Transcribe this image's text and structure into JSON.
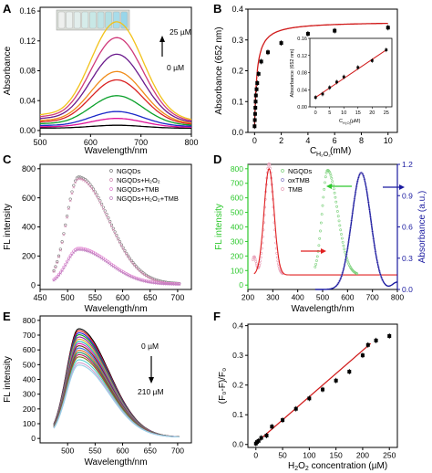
{
  "chart_data": [
    {
      "panel": "A",
      "type": "line",
      "xlabel": "Wavelength/nm",
      "ylabel": "Absorbance",
      "xlim": [
        500,
        800
      ],
      "ylim": [
        -0.005,
        0.165
      ],
      "x_ticks": [
        "500",
        "600",
        "700",
        "800"
      ],
      "y_ticks": [
        "0.00",
        "0.04",
        "0.08",
        "0.12",
        "0.16"
      ],
      "annotations": [
        "25 µM",
        "0 µM"
      ],
      "series": [
        {
          "color": "#000000",
          "peak": 0.004
        },
        {
          "color": "#e0149a",
          "peak": 0.012
        },
        {
          "color": "#1a28c8",
          "peak": 0.02
        },
        {
          "color": "#0aa02a",
          "peak": 0.04
        },
        {
          "color": "#d92020",
          "peak": 0.06
        },
        {
          "color": "#f08c1a",
          "peak": 0.07
        },
        {
          "color": "#6a1a8c",
          "peak": 0.092
        },
        {
          "color": "#d03a7a",
          "peak": 0.113
        },
        {
          "color": "#f2c21a",
          "peak": 0.133
        }
      ]
    },
    {
      "panel": "B",
      "type": "scatter",
      "xlabel": "C",
      "xlabel_sub": "H₂O₂",
      "xlabel_unit": " (mM)",
      "ylabel": "Absorbance (652 nm)",
      "xlim": [
        -0.5,
        10.7
      ],
      "ylim": [
        0,
        0.4
      ],
      "x_ticks": [
        "0",
        "2",
        "4",
        "6",
        "8",
        "10"
      ],
      "y_ticks": [
        "0.0",
        "0.1",
        "0.2",
        "0.3",
        "0.4"
      ],
      "x": [
        0,
        0.02,
        0.04,
        0.06,
        0.08,
        0.1,
        0.15,
        0.2,
        0.3,
        0.5,
        1.0,
        2.0,
        4.0,
        6.0,
        10.0
      ],
      "y": [
        0.02,
        0.04,
        0.06,
        0.08,
        0.1,
        0.12,
        0.14,
        0.16,
        0.19,
        0.23,
        0.26,
        0.29,
        0.32,
        0.33,
        0.34
      ],
      "inset": {
        "xlabel": "C",
        "xlabel_sub": "H₂O₂",
        "xlabel_unit": " (µM)",
        "ylabel": "Absorbance (652 nm)",
        "xlim": [
          -2,
          27
        ],
        "ylim": [
          0,
          0.16
        ],
        "x_ticks": [
          "0",
          "5",
          "10",
          "15",
          "20",
          "25"
        ],
        "y_ticks": [
          "0.00",
          "0.04",
          "0.08",
          "0.12",
          "0.16"
        ],
        "x": [
          0,
          2.5,
          5,
          7.5,
          10,
          15,
          20,
          25
        ],
        "y": [
          0.022,
          0.03,
          0.045,
          0.058,
          0.07,
          0.092,
          0.108,
          0.133
        ]
      }
    },
    {
      "panel": "C",
      "type": "scatter",
      "xlabel": "Wavelength/nm",
      "ylabel": "FL intensity",
      "xlim": [
        450,
        725
      ],
      "ylim": [
        -30,
        830
      ],
      "x_ticks": [
        "450",
        "500",
        "550",
        "600",
        "650",
        "700"
      ],
      "y_ticks": [
        "0",
        "200",
        "400",
        "600",
        "800"
      ],
      "legend": [
        "NGQDs",
        "NGQDs+H₂O₂",
        "NGQDs+TMB",
        "NGQDs+H₂O₂+TMB"
      ],
      "legend_colors": [
        "#777777",
        "#d08ab0",
        "#e080d0",
        "#c080c0"
      ],
      "series": [
        {
          "name": "NGQDs",
          "peak": 735
        },
        {
          "name": "NGQDs+H₂O₂",
          "peak": 728
        },
        {
          "name": "NGQDs+TMB",
          "peak": 245
        },
        {
          "name": "NGQDs+H₂O₂+TMB",
          "peak": 240
        }
      ]
    },
    {
      "panel": "D",
      "type": "line",
      "xlabel": "Wavelength/nm",
      "ylabel": "FL intensity",
      "ylabel_right": "Absorbance (a.u.)",
      "xlim": [
        200,
        800
      ],
      "ylim": [
        -30,
        830
      ],
      "ylim_right": [
        0,
        1.2
      ],
      "x_ticks": [
        "200",
        "300",
        "400",
        "500",
        "600",
        "700",
        "800"
      ],
      "y_ticks": [
        "0",
        "100",
        "200",
        "300",
        "400",
        "500",
        "600",
        "700",
        "800"
      ],
      "y_ticks_right": [
        "0.0",
        "0.3",
        "0.6",
        "0.9",
        "1.2"
      ],
      "legend": [
        "NGQDs",
        "oxTMB",
        "TMB"
      ],
      "colors": {
        "left_axis": "#2ec82e",
        "right_axis": "#1a1aa0"
      }
    },
    {
      "panel": "E",
      "type": "line",
      "xlabel": "Wavelength/nm",
      "ylabel": "FL intensity",
      "xlim": [
        450,
        725
      ],
      "ylim": [
        -30,
        830
      ],
      "x_ticks": [
        "500",
        "550",
        "600",
        "650",
        "700"
      ],
      "y_ticks": [
        "0",
        "100",
        "200",
        "300",
        "400",
        "500",
        "600",
        "700",
        "800"
      ],
      "annotations": [
        "0 µM",
        "210 µM"
      ],
      "peaks": [
        735,
        722,
        708,
        695,
        680,
        665,
        650,
        635,
        620,
        605,
        590,
        575,
        560,
        545,
        525,
        505,
        490
      ],
      "colors": [
        "#000000",
        "#d81a1a",
        "#1a1ad8",
        "#18a018",
        "#8a1ab0",
        "#d8b41a",
        "#1ab0b0",
        "#d81ab0",
        "#6a3a10",
        "#3a6ad8",
        "#e06a1a",
        "#1a8a5a",
        "#b01a5a",
        "#7a7a1a",
        "#5ad0d0",
        "#d0a0d0",
        "#9ad0ea"
      ]
    },
    {
      "panel": "F",
      "type": "scatter",
      "xlabel": "H",
      "xlabel_sub1": "2",
      "xlabel_mid": "O",
      "xlabel_sub2": "2",
      "xlabel_unit": " concentration (µM)",
      "ylabel": "(F₀-F)/F₀",
      "xlim": [
        -15,
        265
      ],
      "ylim": [
        -0.01,
        0.405
      ],
      "x_ticks": [
        "0",
        "50",
        "100",
        "150",
        "200",
        "250"
      ],
      "y_ticks": [
        "0.0",
        "0.1",
        "0.2",
        "0.3",
        "0.4"
      ],
      "x": [
        0,
        2,
        5,
        10,
        20,
        30,
        50,
        75,
        100,
        125,
        150,
        175,
        200,
        210,
        225,
        250
      ],
      "y": [
        0.003,
        0.008,
        0.012,
        0.022,
        0.03,
        0.06,
        0.082,
        0.12,
        0.155,
        0.185,
        0.215,
        0.245,
        0.3,
        0.335,
        0.35,
        0.365
      ]
    }
  ],
  "panel_labels": [
    "A",
    "B",
    "C",
    "D",
    "E",
    "F"
  ]
}
